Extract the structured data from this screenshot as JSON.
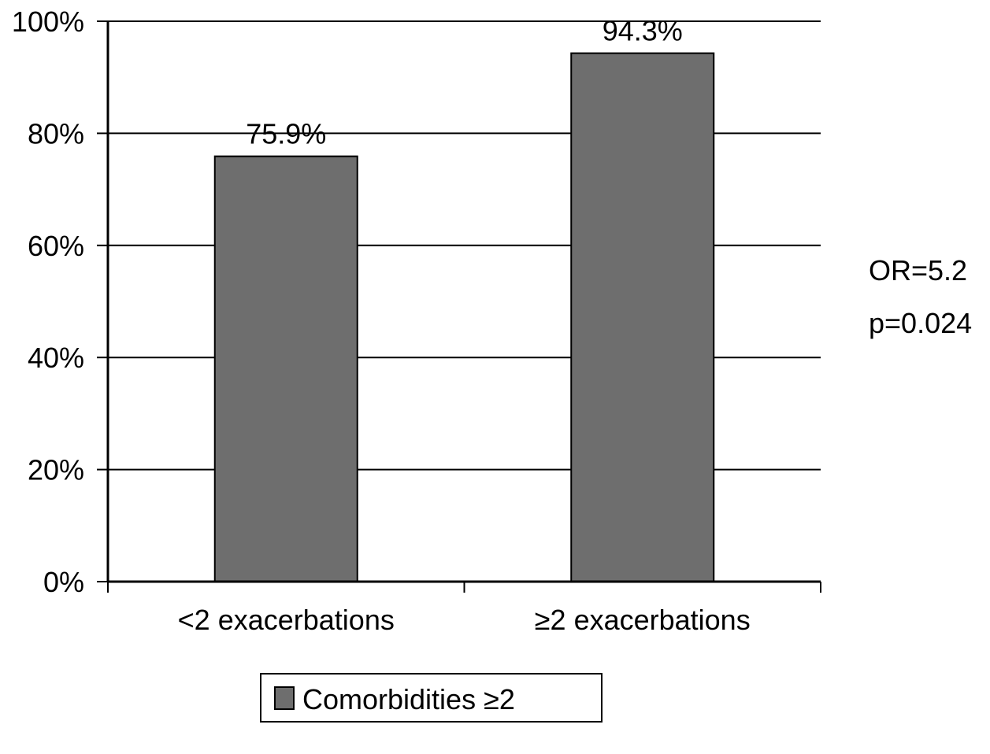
{
  "chart_data": {
    "type": "bar",
    "categories": [
      "<2 exacerbations",
      "≥2 exacerbations"
    ],
    "series": [
      {
        "name": "Comorbidities ≥2",
        "values": [
          75.9,
          94.3
        ],
        "color": "#6e6e6e"
      }
    ],
    "data_labels": [
      "75.9%",
      "94.3%"
    ],
    "y_ticks": [
      0,
      20,
      40,
      60,
      80,
      100
    ],
    "y_tick_labels": [
      "0%",
      "20%",
      "40%",
      "60%",
      "80%",
      "100%"
    ],
    "ylim": [
      0,
      100
    ],
    "grid": true,
    "legend_position": "bottom",
    "annotations": [
      "OR=5.2",
      "p=0.024"
    ],
    "title": "",
    "xlabel": "",
    "ylabel": ""
  }
}
